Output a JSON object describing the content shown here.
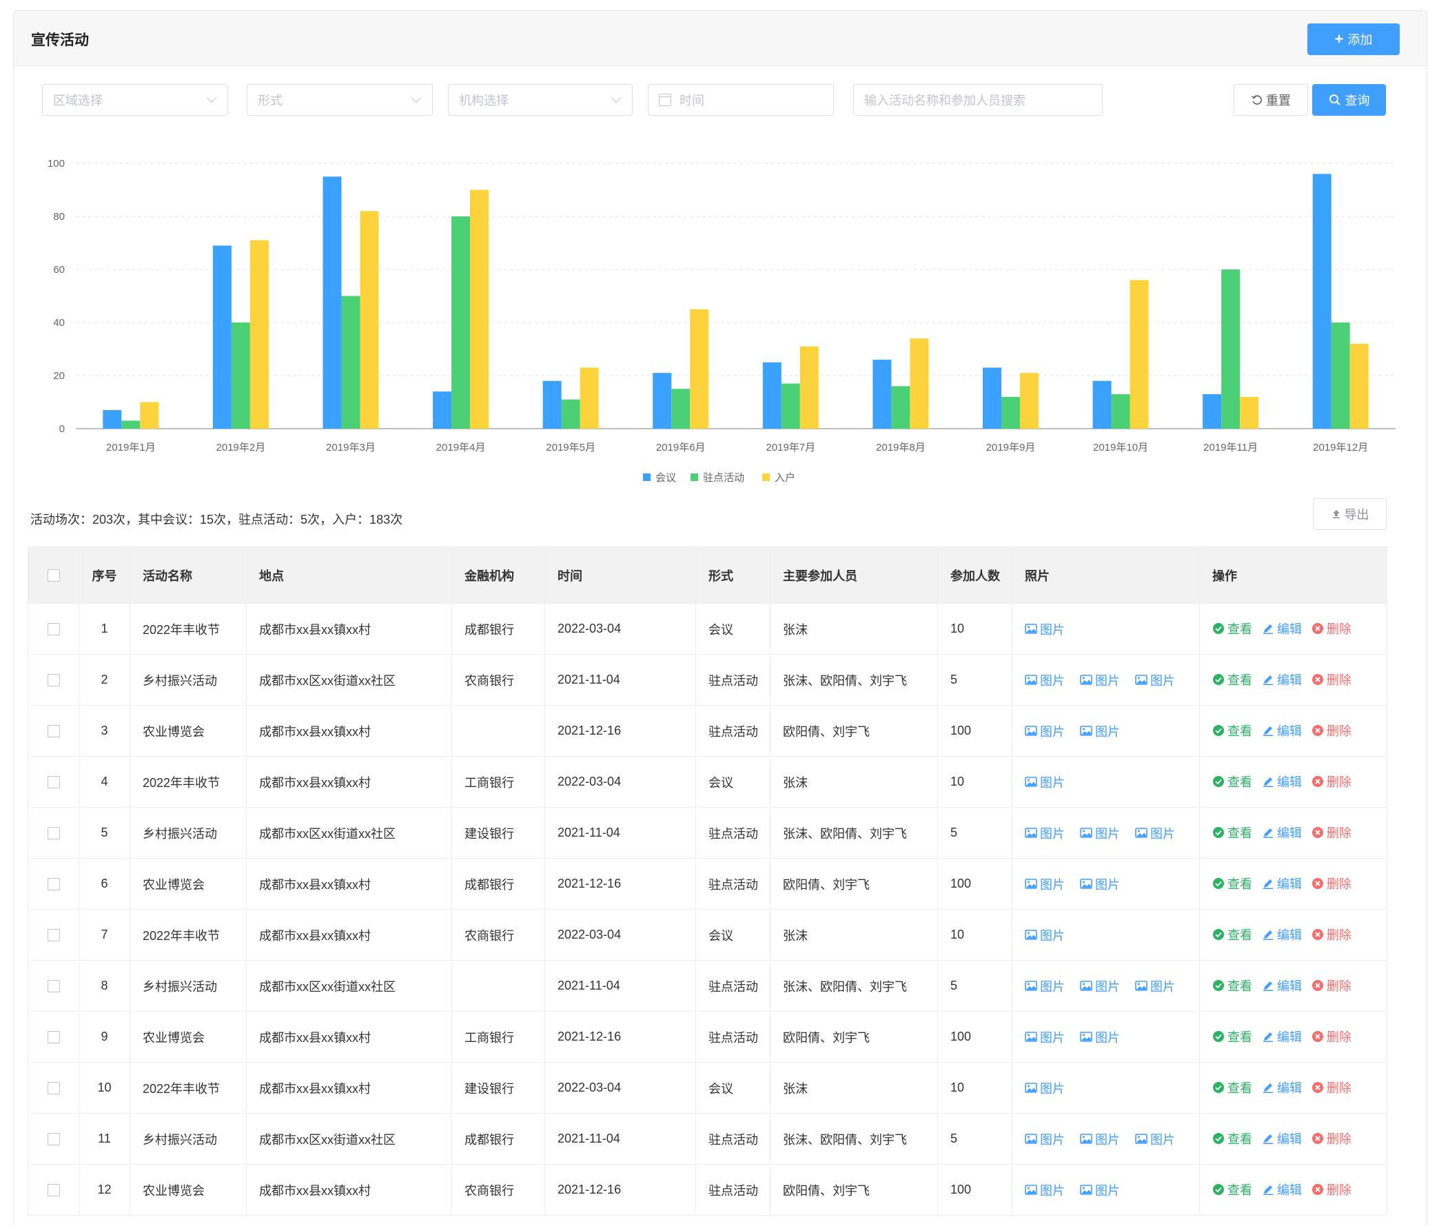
{
  "header": {
    "title": "宣传活动",
    "add_label": "添加"
  },
  "filters": {
    "region_placeholder": "区域选择",
    "form_placeholder": "形式",
    "org_placeholder": "机构选择",
    "time_placeholder": "时间",
    "search_placeholder": "输入活动名称和参加人员搜索",
    "reset_label": "重置",
    "query_label": "查询"
  },
  "colors": {
    "primary": "#409eff",
    "green": "#4cd075",
    "yellow": "#fcd33a",
    "blue": "#3aa1ff",
    "danger": "#f56c6c",
    "success": "#28b463"
  },
  "chart_data": {
    "type": "bar",
    "categories": [
      "2019年1月",
      "2019年2月",
      "2019年3月",
      "2019年4月",
      "2019年5月",
      "2019年6月",
      "2019年7月",
      "2019年8月",
      "2019年9月",
      "2019年10月",
      "2019年11月",
      "2019年12月"
    ],
    "series": [
      {
        "name": "会议",
        "values": [
          7,
          69,
          95,
          14,
          18,
          21,
          25,
          26,
          23,
          18,
          13,
          96
        ]
      },
      {
        "name": "驻点活动",
        "values": [
          3,
          40,
          50,
          80,
          11,
          15,
          17,
          16,
          12,
          13,
          60,
          40
        ]
      },
      {
        "name": "入户",
        "values": [
          10,
          71,
          82,
          90,
          23,
          45,
          31,
          34,
          21,
          56,
          12,
          32
        ]
      }
    ],
    "ylim": [
      0,
      100
    ],
    "yticks": [
      0,
      20,
      40,
      60,
      80,
      100
    ],
    "grid": true,
    "legend": "bottom-center"
  },
  "summary": "活动场次：203次，其中会议：15次，驻点活动：5次，入户：183次",
  "export_label": "导出",
  "table": {
    "headers": [
      "序号",
      "活动名称",
      "地点",
      "金融机构",
      "时间",
      "形式",
      "主要参加人员",
      "参加人数",
      "照片",
      "操作"
    ],
    "photo_label": "图片",
    "actions": {
      "view": "查看",
      "edit": "编辑",
      "delete": "删除"
    },
    "rows": [
      {
        "idx": "1",
        "name": "2022年丰收节",
        "place": "成都市xx县xx镇xx村",
        "org": "成都银行",
        "time": "2022-03-04",
        "form": "会议",
        "people": "张沫",
        "count": "10",
        "photos": 1
      },
      {
        "idx": "2",
        "name": "乡村振兴活动",
        "place": "成都市xx区xx街道xx社区",
        "org": "农商银行",
        "time": "2021-11-04",
        "form": "驻点活动",
        "people": "张沫、欧阳倩、刘宇飞",
        "count": "5",
        "photos": 3
      },
      {
        "idx": "3",
        "name": "农业博览会",
        "place": "成都市xx县xx镇xx村",
        "org": "",
        "time": "2021-12-16",
        "form": "驻点活动",
        "people": "欧阳倩、刘宇飞",
        "count": "100",
        "photos": 2
      },
      {
        "idx": "4",
        "name": "2022年丰收节",
        "place": "成都市xx县xx镇xx村",
        "org": "工商银行",
        "time": "2022-03-04",
        "form": "会议",
        "people": "张沫",
        "count": "10",
        "photos": 1
      },
      {
        "idx": "5",
        "name": "乡村振兴活动",
        "place": "成都市xx区xx街道xx社区",
        "org": "建设银行",
        "time": "2021-11-04",
        "form": "驻点活动",
        "people": "张沫、欧阳倩、刘宇飞",
        "count": "5",
        "photos": 3
      },
      {
        "idx": "6",
        "name": "农业博览会",
        "place": "成都市xx县xx镇xx村",
        "org": "成都银行",
        "time": "2021-12-16",
        "form": "驻点活动",
        "people": "欧阳倩、刘宇飞",
        "count": "100",
        "photos": 2
      },
      {
        "idx": "7",
        "name": "2022年丰收节",
        "place": "成都市xx县xx镇xx村",
        "org": "农商银行",
        "time": "2022-03-04",
        "form": "会议",
        "people": "张沫",
        "count": "10",
        "photos": 1
      },
      {
        "idx": "8",
        "name": "乡村振兴活动",
        "place": "成都市xx区xx街道xx社区",
        "org": "",
        "time": "2021-11-04",
        "form": "驻点活动",
        "people": "张沫、欧阳倩、刘宇飞",
        "count": "5",
        "photos": 3
      },
      {
        "idx": "9",
        "name": "农业博览会",
        "place": "成都市xx县xx镇xx村",
        "org": "工商银行",
        "time": "2021-12-16",
        "form": "驻点活动",
        "people": "欧阳倩、刘宇飞",
        "count": "100",
        "photos": 2
      },
      {
        "idx": "10",
        "name": "2022年丰收节",
        "place": "成都市xx县xx镇xx村",
        "org": "建设银行",
        "time": "2022-03-04",
        "form": "会议",
        "people": "张沫",
        "count": "10",
        "photos": 1
      },
      {
        "idx": "11",
        "name": "乡村振兴活动",
        "place": "成都市xx区xx街道xx社区",
        "org": "成都银行",
        "time": "2021-11-04",
        "form": "驻点活动",
        "people": "张沫、欧阳倩、刘宇飞",
        "count": "5",
        "photos": 3
      },
      {
        "idx": "12",
        "name": "农业博览会",
        "place": "成都市xx县xx镇xx村",
        "org": "农商银行",
        "time": "2021-12-16",
        "form": "驻点活动",
        "people": "欧阳倩、刘宇飞",
        "count": "100",
        "photos": 2
      }
    ]
  }
}
